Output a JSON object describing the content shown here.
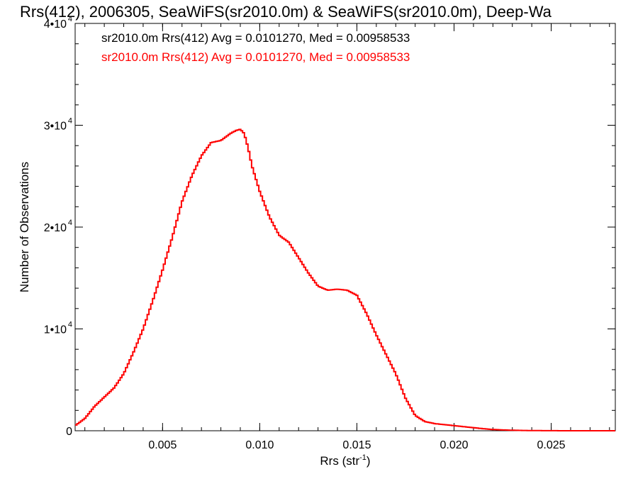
{
  "chart_data": {
    "type": "line",
    "title": "Rrs(412), 2006305, SeaWiFS(sr2010.0m) & SeaWiFS(sr2010.0m), Deep-Wa",
    "xlabel": "Rrs (str",
    "xlabel_sup": "-1",
    "xlabel_close": ")",
    "ylabel": "Number of Observations",
    "xlim": [
      0.0005,
      0.0283
    ],
    "ylim": [
      0,
      40000
    ],
    "grid": false,
    "step": true,
    "x_ticks": [
      {
        "value": 0.005,
        "label": "0.005"
      },
      {
        "value": 0.01,
        "label": "0.010"
      },
      {
        "value": 0.015,
        "label": "0.015"
      },
      {
        "value": 0.02,
        "label": "0.020"
      },
      {
        "value": 0.025,
        "label": "0.025"
      }
    ],
    "y_ticks": [
      {
        "value": 0,
        "label": "0"
      },
      {
        "value": 10000,
        "mant": "1•10",
        "exp": "4"
      },
      {
        "value": 20000,
        "mant": "2•10",
        "exp": "4"
      },
      {
        "value": 30000,
        "mant": "3•10",
        "exp": "4"
      },
      {
        "value": 40000,
        "mant": "4•10",
        "exp": "4"
      }
    ],
    "legend": [
      {
        "text": "sr2010.0m Rrs(412) Avg = 0.0101270, Med = 0.00958533",
        "color": "#000000"
      },
      {
        "text": "sr2010.0m Rrs(412) Avg = 0.0101270, Med = 0.00958533",
        "color": "#ff0000"
      }
    ],
    "series": [
      {
        "color": "#ff0000",
        "x": [
          0.0005,
          0.001,
          0.0015,
          0.002,
          0.0025,
          0.003,
          0.0035,
          0.004,
          0.0045,
          0.005,
          0.0055,
          0.006,
          0.0065,
          0.007,
          0.0075,
          0.008,
          0.0085,
          0.0088,
          0.009,
          0.0092,
          0.0094,
          0.0096,
          0.01,
          0.0105,
          0.011,
          0.0115,
          0.012,
          0.0125,
          0.013,
          0.0135,
          0.014,
          0.0145,
          0.015,
          0.0155,
          0.016,
          0.0165,
          0.017,
          0.0175,
          0.018,
          0.0185,
          0.019,
          0.0195,
          0.02,
          0.0205,
          0.021,
          0.0215,
          0.022,
          0.0225,
          0.023,
          0.0235,
          0.024,
          0.0245,
          0.025,
          0.026,
          0.027,
          0.0283
        ],
        "y": [
          500,
          1200,
          2400,
          3300,
          4200,
          5600,
          7700,
          10000,
          12800,
          15800,
          19000,
          22500,
          25000,
          27000,
          28300,
          28500,
          29200,
          29500,
          29600,
          29200,
          27800,
          26000,
          23500,
          21000,
          19200,
          18500,
          17000,
          15500,
          14200,
          13800,
          13900,
          13800,
          13300,
          11500,
          9400,
          7500,
          5600,
          3200,
          1500,
          900,
          700,
          600,
          500,
          400,
          300,
          200,
          120,
          80,
          50,
          30,
          20,
          10,
          5,
          0,
          0,
          0
        ]
      }
    ]
  }
}
